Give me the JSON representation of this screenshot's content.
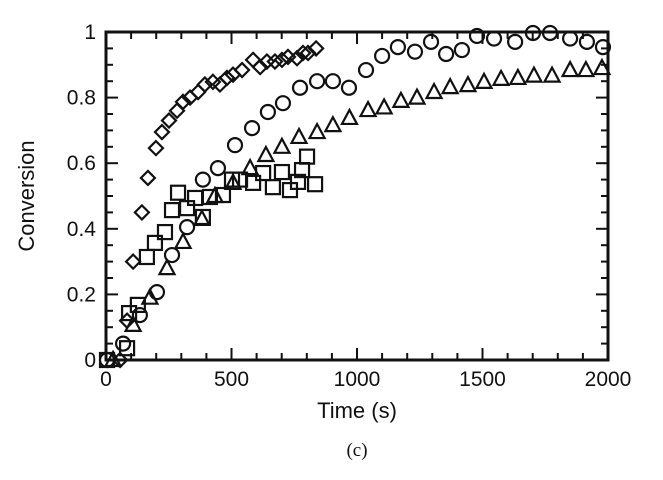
{
  "chart_data": {
    "type": "scatter",
    "xlabel": "Time (s)",
    "ylabel": "Conversion",
    "caption": "(c)",
    "xlim": [
      0,
      2000
    ],
    "ylim": [
      0,
      1
    ],
    "x_ticks": [
      0,
      500,
      1000,
      1500,
      2000
    ],
    "x_tick_labels": [
      "0",
      "500",
      "1000",
      "1500",
      "2000"
    ],
    "y_ticks": [
      0,
      0.2,
      0.4,
      0.6,
      0.8,
      1
    ],
    "y_tick_labels": [
      "0",
      "0.2",
      "0.4",
      "0.6",
      "0.8",
      "1"
    ],
    "grid": false,
    "series": [
      {
        "marker": "diamond",
        "color": "#111111",
        "x": [
          56,
          84,
          108,
          143,
          167,
          199,
          223,
          251,
          283,
          307,
          335,
          367,
          394,
          426,
          454,
          482,
          506,
          542,
          586,
          614,
          641,
          673,
          701,
          725,
          761,
          785,
          805,
          837
        ],
        "y": [
          0.0,
          0.12,
          0.3,
          0.45,
          0.555,
          0.646,
          0.695,
          0.73,
          0.76,
          0.787,
          0.8,
          0.817,
          0.84,
          0.848,
          0.84,
          0.86,
          0.87,
          0.884,
          0.915,
          0.893,
          0.91,
          0.91,
          0.915,
          0.924,
          0.92,
          0.936,
          0.936,
          0.95
        ]
      },
      {
        "marker": "circle",
        "color": "#111111",
        "x": [
          4,
          68,
          135,
          203,
          263,
          323,
          386,
          446,
          514,
          582,
          645,
          705,
          773,
          841,
          904,
          968,
          1036,
          1100,
          1163,
          1231,
          1295,
          1355,
          1418,
          1478,
          1546,
          1630,
          1701,
          1769,
          1849,
          1916,
          1980
        ],
        "y": [
          0.0,
          0.05,
          0.137,
          0.207,
          0.32,
          0.405,
          0.55,
          0.585,
          0.655,
          0.707,
          0.756,
          0.783,
          0.83,
          0.85,
          0.85,
          0.83,
          0.884,
          0.927,
          0.954,
          0.94,
          0.97,
          0.933,
          0.945,
          0.988,
          0.98,
          0.97,
          0.997,
          0.997,
          0.98,
          0.97,
          0.954
        ]
      },
      {
        "marker": "triangle",
        "color": "#111111",
        "x": [
          28,
          108,
          175,
          243,
          307,
          382,
          434,
          506,
          574,
          637,
          701,
          769,
          841,
          904,
          970,
          1044,
          1108,
          1175,
          1239,
          1307,
          1371,
          1442,
          1506,
          1574,
          1641,
          1705,
          1777,
          1849,
          1912,
          1976
        ],
        "y": [
          0.0,
          0.107,
          0.19,
          0.28,
          0.36,
          0.43,
          0.5,
          0.54,
          0.585,
          0.625,
          0.65,
          0.68,
          0.695,
          0.716,
          0.738,
          0.762,
          0.77,
          0.79,
          0.8,
          0.817,
          0.832,
          0.838,
          0.848,
          0.857,
          0.86,
          0.867,
          0.867,
          0.884,
          0.884,
          0.89
        ]
      },
      {
        "marker": "square",
        "color": "#111111",
        "x": [
          4,
          84,
          92,
          127,
          163,
          195,
          235,
          263,
          287,
          323,
          355,
          386,
          414,
          466,
          502,
          534,
          586,
          626,
          665,
          701,
          733,
          765,
          781,
          801,
          833
        ],
        "y": [
          0.0,
          0.036,
          0.143,
          0.168,
          0.314,
          0.357,
          0.39,
          0.457,
          0.51,
          0.463,
          0.494,
          0.436,
          0.497,
          0.503,
          0.55,
          0.55,
          0.54,
          0.57,
          0.527,
          0.573,
          0.518,
          0.543,
          0.579,
          0.62,
          0.536
        ]
      }
    ]
  }
}
